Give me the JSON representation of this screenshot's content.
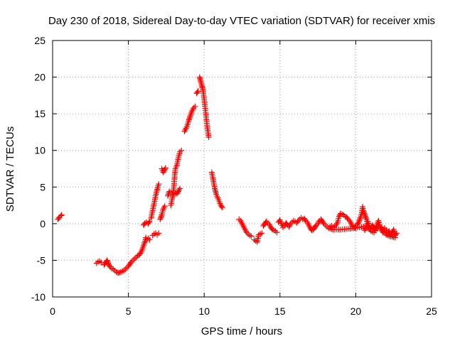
{
  "chart_data": {
    "type": "scatter",
    "title": "Day 230 of 2018, Sidereal Day-to-day VTEC variation (SDTVAR) for receiver xmis",
    "xlabel": "GPS time / hours",
    "ylabel": "SDTVAR / TECUs",
    "xlim": [
      0,
      25
    ],
    "ylim": [
      -10,
      25
    ],
    "xticks": [
      "0",
      "5",
      "10",
      "15",
      "20",
      "25"
    ],
    "yticks": [
      "-10",
      "-5",
      "0",
      "5",
      "10",
      "15",
      "20",
      "25"
    ],
    "grid": true,
    "marker": "+",
    "color": "#ff0000",
    "series": [
      {
        "name": "SDTVAR",
        "segments": [
          [
            [
              0.35,
              0.6
            ],
            [
              0.45,
              0.9
            ],
            [
              0.55,
              1.1
            ],
            [
              0.6,
              1.2
            ]
          ],
          [
            [
              2.9,
              -5.4
            ],
            [
              3.0,
              -5.2
            ],
            [
              3.1,
              -5.1
            ],
            [
              3.2,
              -5.3
            ]
          ],
          [
            [
              3.4,
              -5.6
            ],
            [
              3.5,
              -5.3
            ],
            [
              3.6,
              -5.0
            ],
            [
              3.7,
              -5.6
            ],
            [
              3.8,
              -5.9
            ],
            [
              3.9,
              -6.1
            ],
            [
              4.0,
              -6.2
            ],
            [
              4.1,
              -6.4
            ],
            [
              4.2,
              -6.6
            ],
            [
              4.35,
              -6.7
            ],
            [
              4.5,
              -6.6
            ],
            [
              4.6,
              -6.5
            ],
            [
              4.7,
              -6.4
            ],
            [
              4.8,
              -6.2
            ],
            [
              4.9,
              -6.0
            ],
            [
              5.0,
              -5.8
            ],
            [
              5.1,
              -5.5
            ],
            [
              5.2,
              -5.2
            ],
            [
              5.3,
              -5.0
            ],
            [
              5.4,
              -4.8
            ],
            [
              5.5,
              -4.6
            ],
            [
              5.6,
              -4.4
            ],
            [
              5.7,
              -4.3
            ],
            [
              5.8,
              -4.0
            ],
            [
              5.9,
              -3.6
            ],
            [
              6.0,
              -3.0
            ],
            [
              6.1,
              -2.4
            ],
            [
              6.15,
              -1.9
            ]
          ],
          [
            [
              6.0,
              -0.2
            ],
            [
              6.1,
              0.1
            ],
            [
              6.2,
              0.2
            ],
            [
              6.3,
              0.0
            ],
            [
              6.4,
              0.3
            ]
          ],
          [
            [
              6.2,
              -2.2
            ],
            [
              6.3,
              -2.0
            ],
            [
              6.4,
              -2.2
            ]
          ],
          [
            [
              6.5,
              0.8
            ],
            [
              6.6,
              1.8
            ],
            [
              6.7,
              2.8
            ],
            [
              6.8,
              3.8
            ],
            [
              6.9,
              4.7
            ],
            [
              7.0,
              5.4
            ]
          ],
          [
            [
              6.6,
              -1.6
            ],
            [
              6.7,
              -1.4
            ],
            [
              6.8,
              -1.3
            ],
            [
              6.9,
              -1.5
            ],
            [
              7.0,
              -1.3
            ]
          ],
          [
            [
              7.1,
              0.6
            ],
            [
              7.2,
              1.2
            ],
            [
              7.3,
              2.0
            ],
            [
              7.4,
              2.4
            ]
          ],
          [
            [
              7.2,
              7.5
            ],
            [
              7.3,
              7.0
            ],
            [
              7.35,
              7.2
            ],
            [
              7.45,
              7.6
            ]
          ],
          [
            [
              7.6,
              3.8
            ],
            [
              7.7,
              4.4
            ],
            [
              7.8,
              4.2
            ],
            [
              7.9,
              4.0
            ],
            [
              8.0,
              4.0
            ],
            [
              8.1,
              4.2
            ],
            [
              8.2,
              4.1
            ],
            [
              8.3,
              4.4
            ],
            [
              8.4,
              4.8
            ]
          ],
          [
            [
              7.8,
              2.5
            ],
            [
              7.9,
              3.5
            ],
            [
              8.0,
              5.0
            ],
            [
              8.05,
              6.5
            ],
            [
              8.1,
              7.5
            ],
            [
              8.2,
              8.0
            ],
            [
              8.3,
              9.0
            ],
            [
              8.4,
              9.8
            ],
            [
              8.5,
              10.0
            ]
          ],
          [
            [
              8.7,
              12.6
            ],
            [
              8.8,
              13.0
            ],
            [
              8.9,
              13.5
            ],
            [
              9.0,
              14.2
            ],
            [
              9.1,
              14.8
            ],
            [
              9.2,
              15.4
            ],
            [
              9.3,
              15.8
            ],
            [
              9.4,
              16.0
            ]
          ],
          [
            [
              9.5,
              17.8
            ],
            [
              9.6,
              18.1
            ]
          ],
          [
            [
              9.7,
              20.0
            ],
            [
              9.75,
              19.6
            ],
            [
              9.8,
              19.2
            ],
            [
              9.85,
              18.8
            ],
            [
              9.9,
              18.5
            ],
            [
              9.95,
              17.8
            ],
            [
              10.0,
              17.0
            ],
            [
              10.05,
              16.0
            ],
            [
              10.1,
              15.2
            ],
            [
              10.15,
              14.2
            ],
            [
              10.2,
              13.2
            ],
            [
              10.25,
              12.5
            ],
            [
              10.3,
              11.8
            ]
          ],
          [
            [
              10.5,
              7.0
            ],
            [
              10.55,
              6.5
            ],
            [
              10.6,
              6.0
            ],
            [
              10.65,
              5.3
            ],
            [
              10.7,
              4.8
            ],
            [
              10.75,
              4.4
            ],
            [
              10.8,
              4.0
            ],
            [
              10.9,
              3.5
            ],
            [
              11.0,
              3.0
            ],
            [
              11.1,
              2.5
            ],
            [
              11.2,
              2.2
            ]
          ],
          [
            [
              12.3,
              0.6
            ],
            [
              12.4,
              0.4
            ],
            [
              12.5,
              0.0
            ],
            [
              12.6,
              -0.4
            ],
            [
              12.7,
              -0.8
            ],
            [
              12.8,
              -1.2
            ],
            [
              12.9,
              -1.4
            ],
            [
              13.0,
              -1.6
            ],
            [
              13.1,
              -1.7
            ]
          ],
          [
            [
              13.3,
              -2.2
            ],
            [
              13.5,
              -2.5
            ],
            [
              13.6,
              -1.5
            ],
            [
              13.8,
              -1.3
            ]
          ],
          [
            [
              13.9,
              -0.3
            ],
            [
              14.0,
              0.0
            ],
            [
              14.1,
              0.3
            ],
            [
              14.2,
              0.1
            ],
            [
              14.3,
              -0.1
            ],
            [
              14.4,
              -0.5
            ],
            [
              14.5,
              -0.8
            ],
            [
              14.7,
              -1.0
            ],
            [
              14.8,
              -1.2
            ]
          ],
          [
            [
              14.9,
              0.2
            ],
            [
              15.0,
              0.5
            ],
            [
              15.1,
              0.0
            ],
            [
              15.2,
              -0.5
            ],
            [
              15.3,
              -0.3
            ],
            [
              15.4,
              0.1
            ],
            [
              15.5,
              -0.2
            ],
            [
              15.6,
              -0.4
            ],
            [
              15.7,
              0.0
            ],
            [
              15.8,
              0.2
            ],
            [
              15.9,
              0.4
            ],
            [
              16.0,
              0.3
            ],
            [
              16.1,
              0.1
            ],
            [
              16.2,
              0.4
            ],
            [
              16.3,
              0.6
            ],
            [
              16.4,
              0.8
            ],
            [
              16.5,
              0.6
            ],
            [
              16.6,
              0.7
            ],
            [
              16.7,
              0.4
            ],
            [
              16.8,
              0.2
            ],
            [
              16.9,
              -0.2
            ],
            [
              17.0,
              -0.6
            ],
            [
              17.1,
              -0.9
            ],
            [
              17.2,
              -0.8
            ],
            [
              17.3,
              -0.5
            ],
            [
              17.4,
              -0.2
            ],
            [
              17.5,
              0.0
            ],
            [
              17.6,
              0.4
            ],
            [
              17.7,
              0.6
            ],
            [
              17.8,
              0.3
            ],
            [
              17.9,
              0.0
            ],
            [
              18.0,
              -0.2
            ],
            [
              18.1,
              -0.4
            ],
            [
              18.2,
              -0.6
            ],
            [
              18.3,
              -0.4
            ],
            [
              18.4,
              -0.3
            ],
            [
              18.5,
              -0.5
            ],
            [
              18.6,
              -0.4
            ],
            [
              18.7,
              -0.2
            ],
            [
              18.8,
              0.2
            ],
            [
              18.9,
              1.0
            ],
            [
              19.0,
              1.4
            ],
            [
              19.1,
              1.3
            ],
            [
              19.2,
              1.2
            ],
            [
              19.3,
              1.0
            ],
            [
              19.4,
              0.9
            ],
            [
              19.5,
              0.6
            ],
            [
              19.6,
              0.4
            ],
            [
              19.7,
              0.0
            ],
            [
              19.8,
              -0.4
            ],
            [
              19.9,
              -0.6
            ],
            [
              20.0,
              -0.3
            ],
            [
              20.1,
              -0.1
            ],
            [
              20.2,
              0.2
            ],
            [
              20.3,
              0.8
            ],
            [
              20.4,
              1.5
            ],
            [
              20.45,
              2.3
            ],
            [
              20.5,
              1.8
            ],
            [
              20.6,
              1.2
            ],
            [
              20.7,
              0.6
            ],
            [
              20.8,
              -0.2
            ],
            [
              20.9,
              -0.8
            ],
            [
              21.0,
              -0.6
            ],
            [
              21.1,
              -0.2
            ],
            [
              21.2,
              -0.5
            ],
            [
              21.3,
              -0.8
            ],
            [
              21.4,
              -0.2
            ],
            [
              21.5,
              0.4
            ],
            [
              21.6,
              -0.4
            ],
            [
              21.7,
              -0.9
            ],
            [
              21.8,
              -1.2
            ],
            [
              21.9,
              -0.6
            ],
            [
              22.0,
              -0.8
            ],
            [
              22.1,
              -1.3
            ],
            [
              22.2,
              -1.0
            ],
            [
              22.3,
              -1.5
            ],
            [
              22.4,
              -1.2
            ],
            [
              22.5,
              -0.8
            ],
            [
              22.6,
              -1.6
            ],
            [
              22.7,
              -1.3
            ]
          ],
          [
            [
              18.2,
              -0.6
            ],
            [
              18.5,
              -0.8
            ],
            [
              19.0,
              -0.8
            ],
            [
              19.5,
              -0.7
            ],
            [
              20.0,
              -0.6
            ],
            [
              20.5,
              -0.4
            ],
            [
              20.6,
              -0.9
            ],
            [
              20.8,
              0.3
            ],
            [
              21.0,
              -1.0
            ],
            [
              21.2,
              -1.2
            ],
            [
              21.5,
              -0.4
            ],
            [
              21.7,
              -0.5
            ],
            [
              22.0,
              -1.5
            ],
            [
              22.2,
              -1.7
            ],
            [
              22.4,
              -1.8
            ],
            [
              22.6,
              -1.9
            ]
          ]
        ]
      }
    ]
  }
}
